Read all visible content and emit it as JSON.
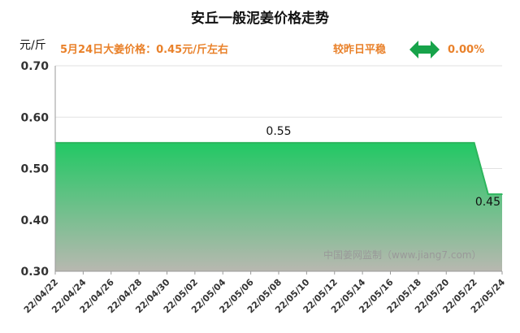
{
  "header": {
    "title": "安丘一般泥姜价格走势",
    "unit": "元/斤",
    "price_note": "5月24日大姜价格：0.45元/斤左右",
    "compare_label": "较昨日平稳",
    "change": "0.00%"
  },
  "watermark": "中国姜网监制（www.jiang7.com）",
  "colors": {
    "accent": "#e9812a",
    "area_top": "#22c864",
    "area_bottom": "#b8b8b0",
    "line": "#2db55d",
    "arrow": "#17a34a"
  },
  "chart_data": {
    "type": "area",
    "title": "安丘一般泥姜价格走势",
    "ylabel": "元/斤",
    "ylim": [
      0.3,
      0.7
    ],
    "yticks": [
      "0.30",
      "0.40",
      "0.50",
      "0.60",
      "0.70"
    ],
    "x_ticks": [
      "22/04/22",
      "22/04/24",
      "22/04/26",
      "22/04/28",
      "22/04/30",
      "22/05/02",
      "22/05/04",
      "22/05/06",
      "22/05/08",
      "22/05/10",
      "22/05/12",
      "22/05/14",
      "22/05/16",
      "22/05/18",
      "22/05/20",
      "22/05/22",
      "22/05/24"
    ],
    "x": [
      "22/04/22",
      "22/04/23",
      "22/04/24",
      "22/04/25",
      "22/04/26",
      "22/04/27",
      "22/04/28",
      "22/04/29",
      "22/04/30",
      "22/05/01",
      "22/05/02",
      "22/05/03",
      "22/05/04",
      "22/05/05",
      "22/05/06",
      "22/05/07",
      "22/05/08",
      "22/05/09",
      "22/05/10",
      "22/05/11",
      "22/05/12",
      "22/05/13",
      "22/05/14",
      "22/05/15",
      "22/05/16",
      "22/05/17",
      "22/05/18",
      "22/05/19",
      "22/05/20",
      "22/05/21",
      "22/05/22",
      "22/05/23",
      "22/05/24"
    ],
    "values": [
      0.55,
      0.55,
      0.55,
      0.55,
      0.55,
      0.55,
      0.55,
      0.55,
      0.55,
      0.55,
      0.55,
      0.55,
      0.55,
      0.55,
      0.55,
      0.55,
      0.55,
      0.55,
      0.55,
      0.55,
      0.55,
      0.55,
      0.55,
      0.55,
      0.55,
      0.55,
      0.55,
      0.55,
      0.55,
      0.55,
      0.55,
      0.45,
      0.45
    ],
    "data_labels": [
      {
        "x": "22/05/08",
        "text": "0.55"
      },
      {
        "x": "22/05/24",
        "text": "0.45"
      }
    ],
    "grid": true
  }
}
